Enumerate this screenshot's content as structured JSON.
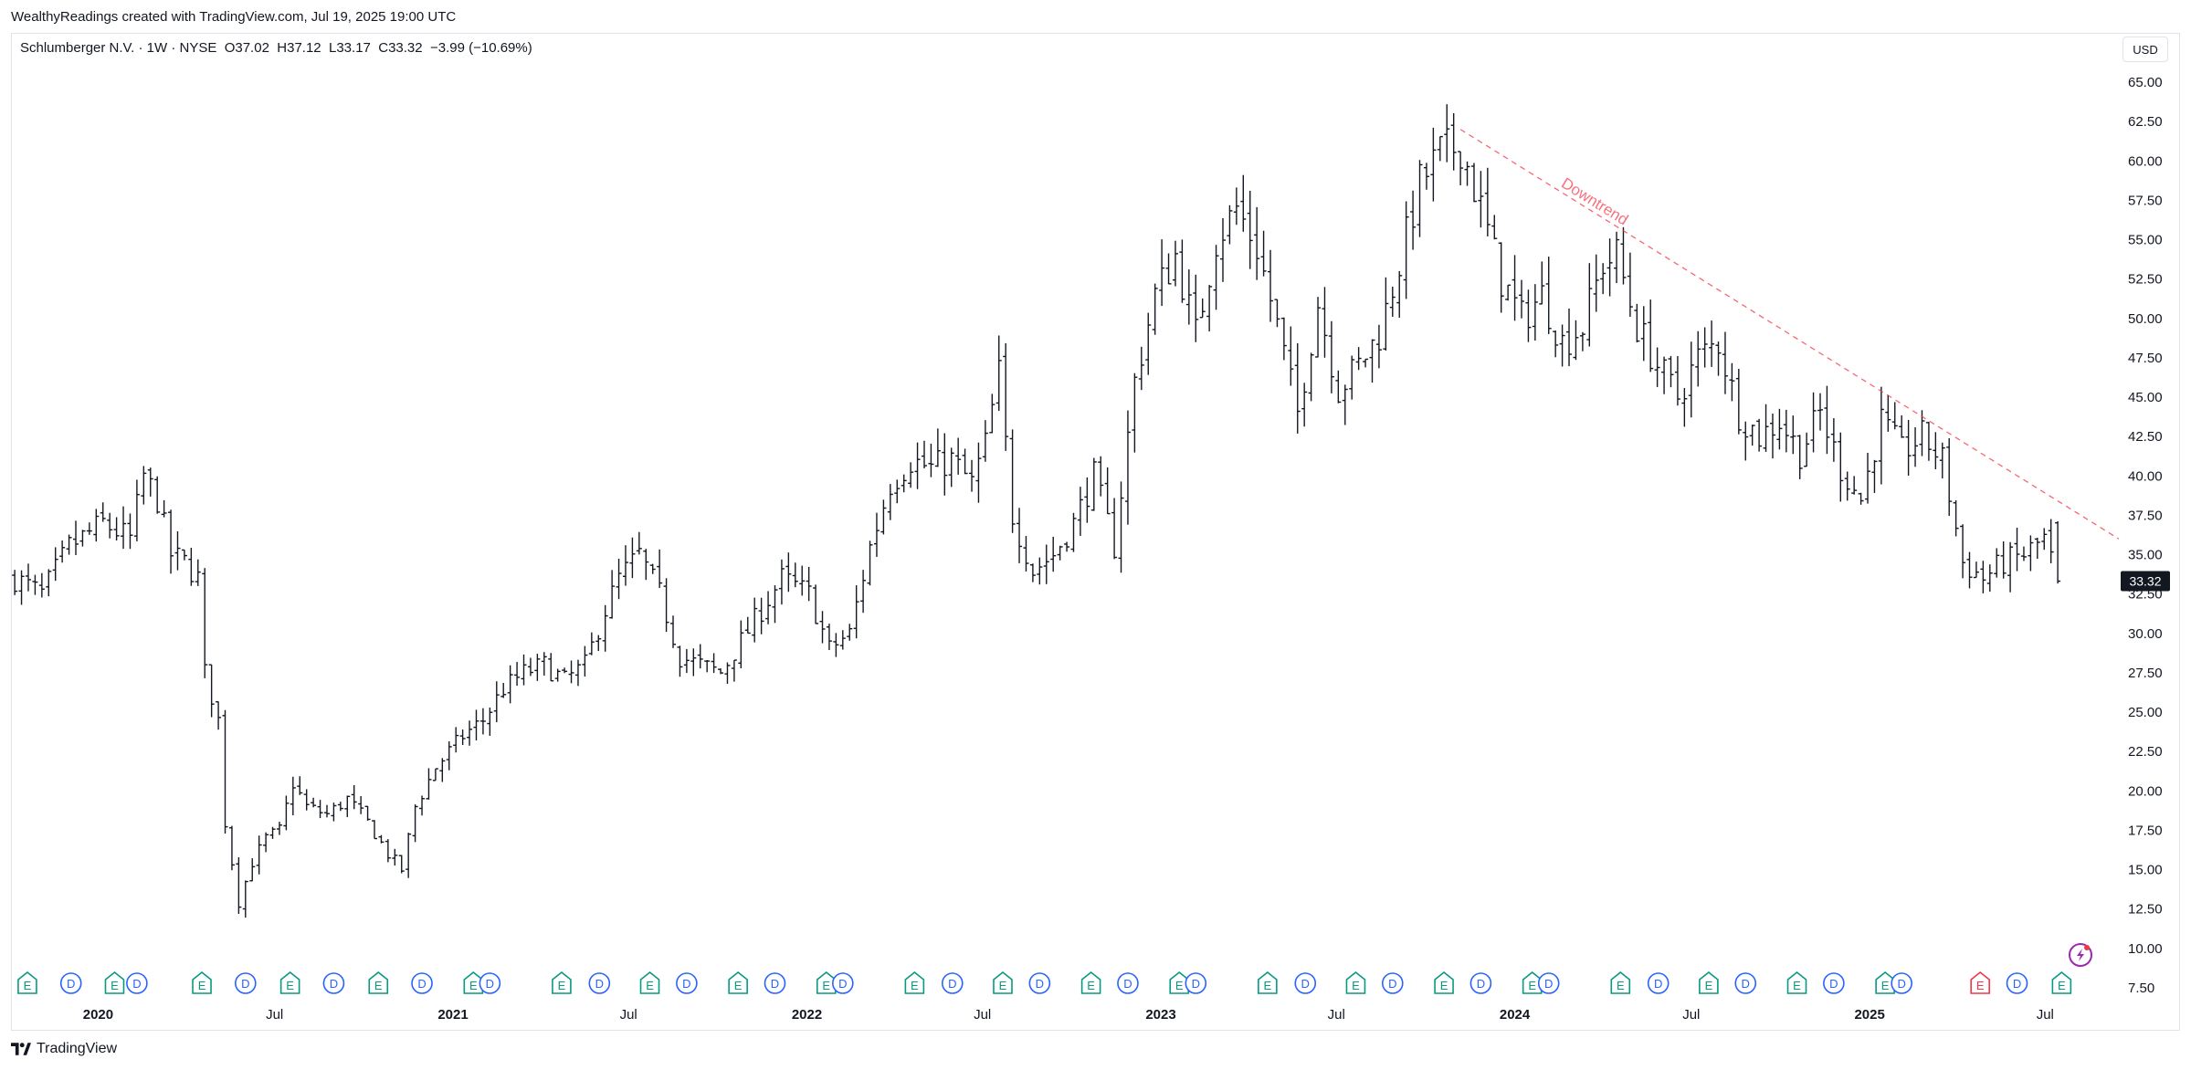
{
  "credit": "WealthyReadings created with TradingView.com, Jul 19, 2025 19:00 UTC",
  "legend": {
    "symbol": "Schlumberger N.V. · 1W · NYSE",
    "open_label": "O",
    "open": "37.02",
    "high_label": "H",
    "high": "37.12",
    "low_label": "L",
    "low": "33.17",
    "close_label": "C",
    "close": "33.32",
    "change": "−3.99 (−10.69%)"
  },
  "currency": "USD",
  "brand": "TradingView",
  "flash_icon": "lightning-icon",
  "chart_data": {
    "type": "bar",
    "subtype": "ohlc-weekly",
    "title": "",
    "xlabel": "",
    "ylabel": "",
    "ylim": [
      7.5,
      65.0
    ],
    "y_ticks": [
      "65.00",
      "62.50",
      "60.00",
      "57.50",
      "55.00",
      "52.50",
      "50.00",
      "47.50",
      "45.00",
      "42.50",
      "40.00",
      "37.50",
      "35.00",
      "32.50",
      "30.00",
      "27.50",
      "25.00",
      "22.50",
      "20.00",
      "17.50",
      "15.00",
      "12.50",
      "10.00",
      "7.50"
    ],
    "x_ticks": [
      {
        "label": "2020",
        "date": "2020-01-01",
        "bold": true
      },
      {
        "label": "Jul",
        "date": "2020-07-01",
        "bold": false
      },
      {
        "label": "2021",
        "date": "2021-01-01",
        "bold": true
      },
      {
        "label": "Jul",
        "date": "2021-07-01",
        "bold": false
      },
      {
        "label": "2022",
        "date": "2022-01-01",
        "bold": true
      },
      {
        "label": "Jul",
        "date": "2022-07-01",
        "bold": false
      },
      {
        "label": "2023",
        "date": "2023-01-01",
        "bold": true
      },
      {
        "label": "Jul",
        "date": "2023-07-01",
        "bold": false
      },
      {
        "label": "2024",
        "date": "2024-01-01",
        "bold": true
      },
      {
        "label": "Jul",
        "date": "2024-07-01",
        "bold": false
      },
      {
        "label": "2025",
        "date": "2025-01-01",
        "bold": true
      },
      {
        "label": "Jul",
        "date": "2025-07-01",
        "bold": false
      }
    ],
    "x_range": [
      "2019-10-05",
      "2025-09-15"
    ],
    "last_price": "33.32",
    "grid": false,
    "series_color": "#131722",
    "price_points": [
      [
        "2019-10-07",
        33.5
      ],
      [
        "2019-11-04",
        32.5
      ],
      [
        "2019-12-02",
        35.5
      ],
      [
        "2020-01-06",
        37.0
      ],
      [
        "2020-02-03",
        36.0
      ],
      [
        "2020-02-17",
        40.0
      ],
      [
        "2020-03-02",
        38.5
      ],
      [
        "2020-03-16",
        35.0
      ],
      [
        "2020-03-30",
        34.5
      ],
      [
        "2020-04-13",
        33.5
      ],
      [
        "2020-04-20",
        27.5
      ],
      [
        "2020-05-04",
        24.5
      ],
      [
        "2020-05-11",
        18.0
      ],
      [
        "2020-05-25",
        13.0
      ],
      [
        "2020-06-08",
        15.5
      ],
      [
        "2020-06-22",
        17.0
      ],
      [
        "2020-07-06",
        17.5
      ],
      [
        "2020-07-20",
        20.5
      ],
      [
        "2020-08-03",
        19.0
      ],
      [
        "2020-08-24",
        18.5
      ],
      [
        "2020-09-14",
        19.5
      ],
      [
        "2020-10-05",
        18.0
      ],
      [
        "2020-10-26",
        16.0
      ],
      [
        "2020-11-09",
        15.0
      ],
      [
        "2020-11-23",
        19.0
      ],
      [
        "2020-12-14",
        21.5
      ],
      [
        "2021-01-11",
        23.5
      ],
      [
        "2021-02-01",
        24.5
      ],
      [
        "2021-02-22",
        26.5
      ],
      [
        "2021-03-15",
        27.5
      ],
      [
        "2021-04-05",
        28.0
      ],
      [
        "2021-04-26",
        27.0
      ],
      [
        "2021-05-17",
        28.0
      ],
      [
        "2021-06-07",
        31.5
      ],
      [
        "2021-06-21",
        33.5
      ],
      [
        "2021-07-12",
        35.0
      ],
      [
        "2021-08-02",
        32.5
      ],
      [
        "2021-08-23",
        28.5
      ],
      [
        "2021-09-13",
        28.0
      ],
      [
        "2021-10-04",
        27.5
      ],
      [
        "2021-10-25",
        29.5
      ],
      [
        "2021-11-15",
        31.5
      ],
      [
        "2021-12-06",
        33.5
      ],
      [
        "2022-01-03",
        32.5
      ],
      [
        "2022-01-24",
        29.0
      ],
      [
        "2022-02-14",
        30.0
      ],
      [
        "2022-03-07",
        35.5
      ],
      [
        "2022-03-28",
        39.5
      ],
      [
        "2022-04-18",
        41.0
      ],
      [
        "2022-05-09",
        40.5
      ],
      [
        "2022-05-30",
        41.0
      ],
      [
        "2022-06-20",
        39.5
      ],
      [
        "2022-07-04",
        42.0
      ],
      [
        "2022-07-18",
        46.5
      ],
      [
        "2022-08-01",
        37.5
      ],
      [
        "2022-08-22",
        34.0
      ],
      [
        "2022-09-12",
        35.0
      ],
      [
        "2022-10-03",
        37.0
      ],
      [
        "2022-10-24",
        40.0
      ],
      [
        "2022-11-14",
        35.5
      ],
      [
        "2022-12-05",
        46.0
      ],
      [
        "2022-12-26",
        51.5
      ],
      [
        "2023-01-16",
        54.0
      ],
      [
        "2023-02-06",
        49.0
      ],
      [
        "2023-02-27",
        55.0
      ],
      [
        "2023-03-20",
        57.0
      ],
      [
        "2023-04-10",
        54.5
      ],
      [
        "2023-05-01",
        49.5
      ],
      [
        "2023-05-22",
        44.0
      ],
      [
        "2023-06-12",
        51.0
      ],
      [
        "2023-07-03",
        45.5
      ],
      [
        "2023-07-24",
        47.0
      ],
      [
        "2023-08-14",
        49.0
      ],
      [
        "2023-09-04",
        53.5
      ],
      [
        "2023-09-25",
        58.5
      ],
      [
        "2023-10-16",
        60.5
      ],
      [
        "2023-11-06",
        61.0
      ],
      [
        "2023-11-27",
        57.0
      ],
      [
        "2023-12-18",
        52.5
      ],
      [
        "2024-01-08",
        50.0
      ],
      [
        "2024-01-29",
        51.5
      ],
      [
        "2024-02-19",
        48.5
      ],
      [
        "2024-03-11",
        49.5
      ],
      [
        "2024-04-01",
        53.5
      ],
      [
        "2024-04-15",
        54.0
      ],
      [
        "2024-05-06",
        49.5
      ],
      [
        "2024-05-27",
        47.0
      ],
      [
        "2024-06-17",
        45.0
      ],
      [
        "2024-07-08",
        47.5
      ],
      [
        "2024-07-29",
        48.5
      ],
      [
        "2024-08-19",
        44.0
      ],
      [
        "2024-09-09",
        42.5
      ],
      [
        "2024-09-30",
        43.5
      ],
      [
        "2024-10-21",
        41.5
      ],
      [
        "2024-11-11",
        44.0
      ],
      [
        "2024-12-02",
        40.5
      ],
      [
        "2024-12-23",
        38.5
      ],
      [
        "2025-01-13",
        43.5
      ],
      [
        "2025-02-03",
        41.5
      ],
      [
        "2025-02-24",
        42.5
      ],
      [
        "2025-03-17",
        41.0
      ],
      [
        "2025-04-07",
        34.5
      ],
      [
        "2025-04-28",
        33.5
      ],
      [
        "2025-05-19",
        34.5
      ],
      [
        "2025-06-09",
        35.0
      ],
      [
        "2025-06-30",
        36.0
      ],
      [
        "2025-07-14",
        33.3
      ]
    ],
    "annotations": [
      {
        "type": "trendline",
        "label": "Downtrend",
        "from": [
          "2023-11-06",
          62.0
        ],
        "to": [
          "2025-09-15",
          36.0
        ],
        "color": "#f23645",
        "style": "dashed"
      }
    ],
    "events": [
      {
        "type": "E",
        "date": "2019-10-20",
        "color": "#089981"
      },
      {
        "type": "D",
        "date": "2019-12-04",
        "color": "#2962ff"
      },
      {
        "type": "E",
        "date": "2020-01-18",
        "color": "#089981"
      },
      {
        "type": "D",
        "date": "2020-02-10",
        "color": "#2962ff"
      },
      {
        "type": "E",
        "date": "2020-04-17",
        "color": "#089981"
      },
      {
        "type": "D",
        "date": "2020-06-01",
        "color": "#2962ff"
      },
      {
        "type": "E",
        "date": "2020-07-17",
        "color": "#089981"
      },
      {
        "type": "D",
        "date": "2020-08-31",
        "color": "#2962ff"
      },
      {
        "type": "E",
        "date": "2020-10-16",
        "color": "#089981"
      },
      {
        "type": "D",
        "date": "2020-11-30",
        "color": "#2962ff"
      },
      {
        "type": "E",
        "date": "2021-01-22",
        "color": "#089981"
      },
      {
        "type": "D",
        "date": "2021-02-08",
        "color": "#2962ff"
      },
      {
        "type": "E",
        "date": "2021-04-23",
        "color": "#089981"
      },
      {
        "type": "D",
        "date": "2021-06-01",
        "color": "#2962ff"
      },
      {
        "type": "E",
        "date": "2021-07-23",
        "color": "#089981"
      },
      {
        "type": "D",
        "date": "2021-08-30",
        "color": "#2962ff"
      },
      {
        "type": "E",
        "date": "2021-10-22",
        "color": "#089981"
      },
      {
        "type": "D",
        "date": "2021-11-29",
        "color": "#2962ff"
      },
      {
        "type": "E",
        "date": "2022-01-21",
        "color": "#089981"
      },
      {
        "type": "D",
        "date": "2022-02-07",
        "color": "#2962ff"
      },
      {
        "type": "E",
        "date": "2022-04-22",
        "color": "#089981"
      },
      {
        "type": "D",
        "date": "2022-05-31",
        "color": "#2962ff"
      },
      {
        "type": "E",
        "date": "2022-07-22",
        "color": "#089981"
      },
      {
        "type": "D",
        "date": "2022-08-29",
        "color": "#2962ff"
      },
      {
        "type": "E",
        "date": "2022-10-21",
        "color": "#089981"
      },
      {
        "type": "D",
        "date": "2022-11-28",
        "color": "#2962ff"
      },
      {
        "type": "E",
        "date": "2023-01-20",
        "color": "#089981"
      },
      {
        "type": "D",
        "date": "2023-02-06",
        "color": "#2962ff"
      },
      {
        "type": "E",
        "date": "2023-04-21",
        "color": "#089981"
      },
      {
        "type": "D",
        "date": "2023-05-30",
        "color": "#2962ff"
      },
      {
        "type": "E",
        "date": "2023-07-21",
        "color": "#089981"
      },
      {
        "type": "D",
        "date": "2023-08-28",
        "color": "#2962ff"
      },
      {
        "type": "E",
        "date": "2023-10-20",
        "color": "#089981"
      },
      {
        "type": "D",
        "date": "2023-11-27",
        "color": "#2962ff"
      },
      {
        "type": "E",
        "date": "2024-01-19",
        "color": "#089981"
      },
      {
        "type": "D",
        "date": "2024-02-05",
        "color": "#2962ff"
      },
      {
        "type": "E",
        "date": "2024-04-19",
        "color": "#089981"
      },
      {
        "type": "D",
        "date": "2024-05-28",
        "color": "#2962ff"
      },
      {
        "type": "E",
        "date": "2024-07-19",
        "color": "#089981"
      },
      {
        "type": "D",
        "date": "2024-08-26",
        "color": "#2962ff"
      },
      {
        "type": "E",
        "date": "2024-10-18",
        "color": "#089981"
      },
      {
        "type": "D",
        "date": "2024-11-25",
        "color": "#2962ff"
      },
      {
        "type": "E",
        "date": "2025-01-17",
        "color": "#089981"
      },
      {
        "type": "D",
        "date": "2025-02-03",
        "color": "#2962ff"
      },
      {
        "type": "E",
        "date": "2025-04-25",
        "color": "#f23645"
      },
      {
        "type": "D",
        "date": "2025-06-02",
        "color": "#2962ff"
      },
      {
        "type": "E",
        "date": "2025-07-18",
        "color": "#089981"
      }
    ]
  }
}
